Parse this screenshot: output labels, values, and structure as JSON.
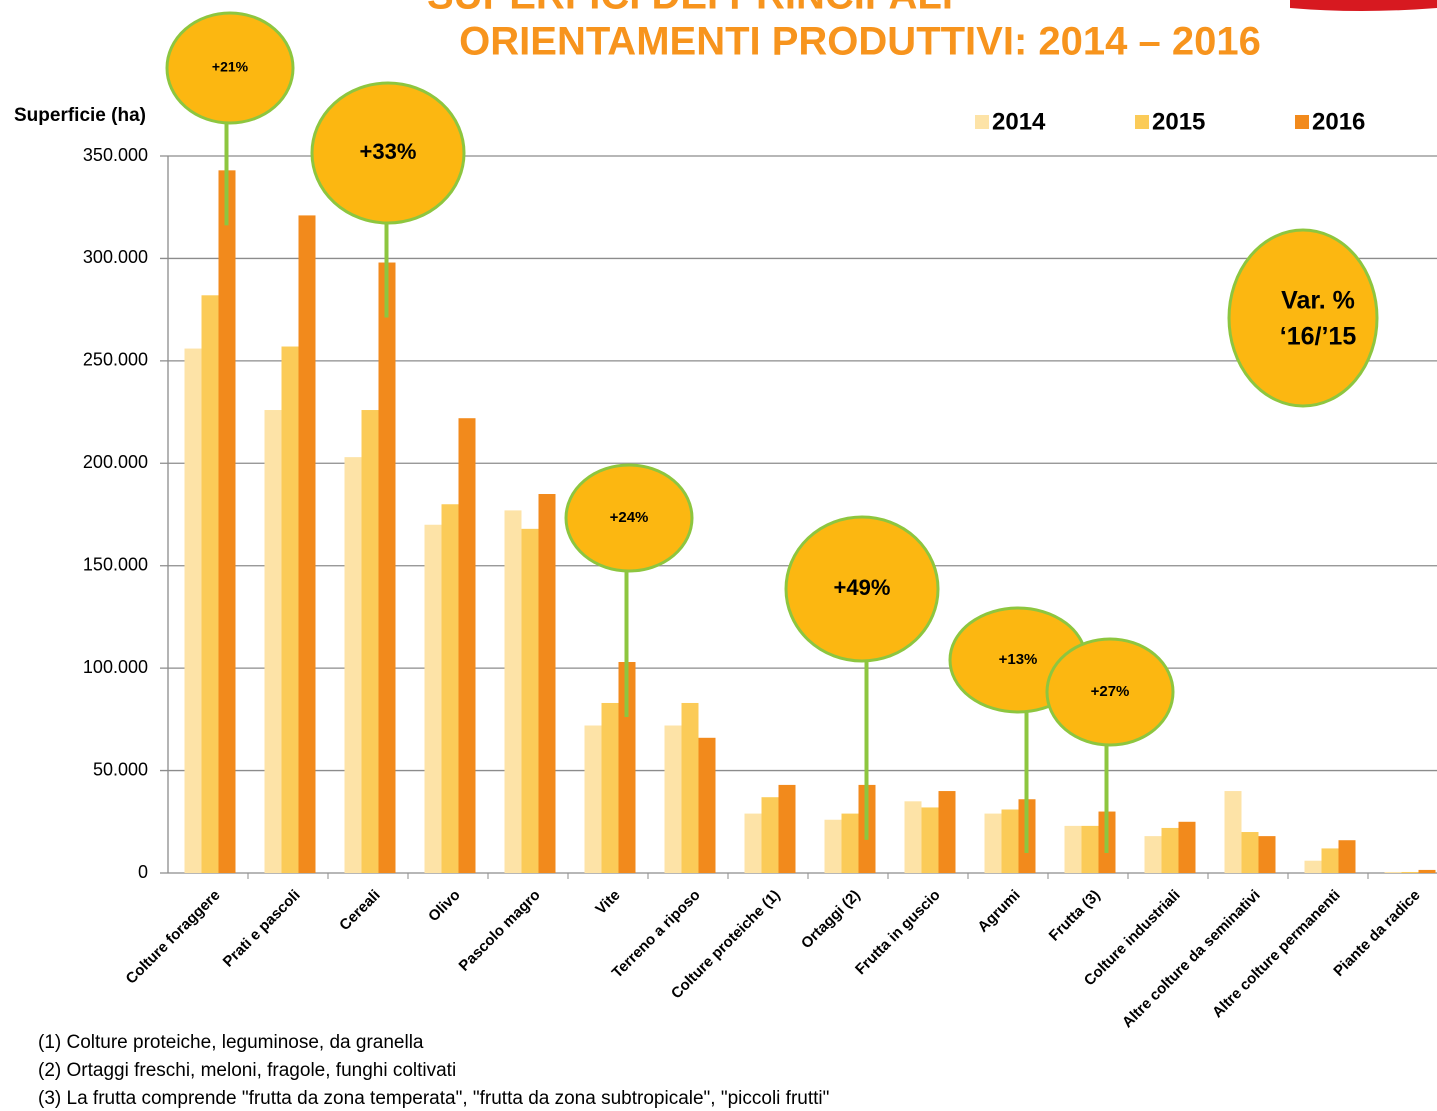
{
  "chart_data": {
    "type": "bar",
    "title": [
      "SUPERFICI DEI PRINCIPALI",
      "ORIENTAMENTI PRODUTTIVI: 2014 – 2016"
    ],
    "y_label": "Superficie (ha)",
    "categories": [
      "Colture foraggere",
      "Prati e pascoli",
      "Cereali",
      "Olivo",
      "Pascolo magro",
      "Vite",
      "Terreno a riposo",
      "Colture proteiche (1)",
      "Ortaggi (2)",
      "Frutta in guscio",
      "Agrumi",
      "Frutta (3)",
      "Colture industriali",
      "Altre colture da seminativi",
      "Altre colture permanenti",
      "Piante da radice"
    ],
    "series": [
      {
        "name": "2014",
        "color": "#fde3a7",
        "values": [
          256000,
          226000,
          203000,
          170000,
          177000,
          72000,
          72000,
          29000,
          26000,
          35000,
          29000,
          23000,
          18000,
          40000,
          6000,
          500
        ]
      },
      {
        "name": "2015",
        "color": "#fbcb58",
        "values": [
          282000,
          257000,
          226000,
          180000,
          168000,
          83000,
          83000,
          37000,
          29000,
          32000,
          31000,
          23000,
          22000,
          20000,
          12000,
          500
        ]
      },
      {
        "name": "2016",
        "color": "#f28a1c",
        "values": [
          343000,
          321000,
          298000,
          222000,
          185000,
          103000,
          66000,
          43000,
          43000,
          40000,
          36000,
          30000,
          25000,
          18000,
          16000,
          1500
        ]
      }
    ],
    "ylim": [
      0,
      350000
    ],
    "yticks": [
      0,
      {
        "value": 50000,
        "label": "50.000"
      },
      {
        "value": 100000,
        "label": "100.000"
      },
      {
        "value": 150000,
        "label": "150.000"
      },
      {
        "value": 200000,
        "label": "200.000"
      },
      {
        "value": 250000,
        "label": "250.000"
      },
      {
        "value": 300000,
        "label": "300.000"
      },
      {
        "value": 350000,
        "label": "350.000"
      }
    ],
    "grid": true,
    "legend": "top-right",
    "annotations": [
      "+21%",
      "+33%",
      "+24%",
      "+49%",
      "+13%",
      "+27%"
    ],
    "var_note": [
      "Var. %",
      "‘16/’15"
    ],
    "footnotes": [
      "(1) Colture proteiche, leguminose, da granella",
      "(2) Ortaggi freschi, meloni, fragole, funghi coltivati",
      "(3) La frutta comprende \"frutta da zona temperata\", \"frutta da zona subtropicale\", \"piccoli frutti\""
    ]
  }
}
